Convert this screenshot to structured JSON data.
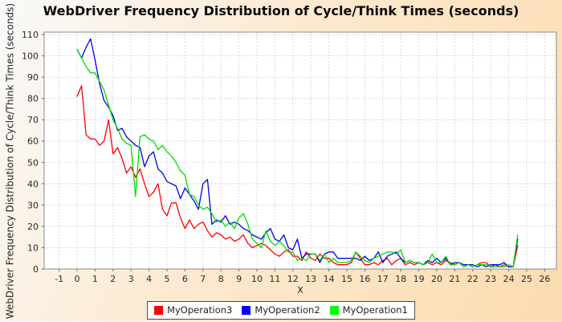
{
  "title": "WebDriver Frequency Distribution of Cycle/Think Times (seconds)",
  "background": {
    "top_left": "#fafafa",
    "mid": "#fce9cf",
    "bottom_right": "#fbdcb0"
  },
  "chart_data": {
    "type": "line",
    "title": "WebDriver Frequency Distribution of Cycle/Think Times (seconds)",
    "xlabel": "X",
    "ylabel": "WebDriver Frequency Distribution of Cycle/Think Times (seconds)",
    "xlim": [
      -1.8,
      26.6
    ],
    "ylim": [
      0,
      111
    ],
    "grid": true,
    "legend_position": "bottom",
    "x_ticks": [
      -1,
      0,
      1,
      2,
      3,
      4,
      5,
      6,
      7,
      8,
      9,
      10,
      11,
      12,
      13,
      14,
      15,
      16,
      17,
      18,
      19,
      20,
      21,
      22,
      23,
      24,
      25,
      26
    ],
    "y_ticks": [
      0,
      10,
      20,
      30,
      40,
      50,
      60,
      70,
      80,
      90,
      100,
      110
    ],
    "x_start": 0,
    "x_step": 0.25,
    "series": [
      {
        "name": "MyOperation3",
        "color": "#ff0000",
        "legend_color": "#ff0000",
        "values": [
          81,
          86,
          63,
          61,
          61,
          58,
          60,
          70,
          54,
          57,
          52,
          45,
          48,
          43,
          47,
          40,
          34,
          36,
          40,
          28,
          25,
          31,
          31,
          24,
          19,
          23,
          19,
          21,
          22,
          18,
          15,
          17,
          16,
          14,
          15,
          13,
          14,
          16,
          12,
          10,
          11,
          12,
          11,
          9,
          7,
          6,
          8,
          9,
          6,
          6,
          4,
          8,
          5,
          4,
          7,
          5,
          5,
          3,
          2,
          2,
          2,
          3,
          8,
          5,
          2,
          2,
          3,
          2,
          4,
          5,
          2,
          4,
          5,
          2,
          3,
          2,
          3,
          2,
          3,
          2,
          3,
          2,
          4,
          3,
          2,
          3,
          1,
          2,
          1,
          2,
          3,
          3,
          1,
          2,
          1,
          2,
          1,
          1,
          11
        ]
      },
      {
        "name": "MyOperation2",
        "color": "#0000ee",
        "legend_color": "#0000ff",
        "values": [
          103,
          99,
          104,
          108,
          98,
          87,
          79,
          76,
          72,
          65,
          66,
          62,
          60,
          58,
          57,
          48,
          53,
          55,
          47,
          45,
          41,
          40,
          39,
          33,
          38,
          35,
          32,
          28,
          40,
          42,
          21,
          23,
          22,
          25,
          21,
          22,
          21,
          19,
          18,
          16,
          15,
          14,
          17,
          19,
          14,
          13,
          16,
          10,
          9,
          14,
          5,
          7,
          7,
          7,
          3,
          7,
          8,
          8,
          5,
          5,
          5,
          5,
          5,
          4,
          6,
          4,
          5,
          8,
          3,
          6,
          7,
          8,
          5,
          3,
          4,
          3,
          3,
          2,
          4,
          3,
          5,
          3,
          5,
          2,
          3,
          3,
          2,
          2,
          2,
          1,
          2,
          1,
          2,
          2,
          2,
          3,
          1,
          1,
          14
        ]
      },
      {
        "name": "MyOperation1",
        "color": "#00dd00",
        "legend_color": "#00ff00",
        "values": [
          103,
          99,
          95,
          92,
          92,
          88,
          84,
          77,
          70,
          66,
          61,
          59,
          58,
          34,
          62,
          63,
          61,
          60,
          56,
          58,
          55,
          53,
          50,
          46,
          44,
          35,
          34,
          30,
          28,
          29,
          26,
          22,
          23,
          20,
          22,
          19,
          24,
          26,
          21,
          14,
          12,
          10,
          18,
          13,
          11,
          13,
          11,
          8,
          8,
          4,
          5,
          4,
          7,
          7,
          4,
          7,
          3,
          5,
          3,
          3,
          3,
          4,
          8,
          6,
          4,
          3,
          5,
          6,
          7,
          8,
          8,
          7,
          9,
          3,
          4,
          3,
          3,
          2,
          3,
          7,
          3,
          3,
          6,
          2,
          2,
          3,
          1,
          2,
          1,
          2,
          2,
          2,
          1,
          1,
          1,
          1,
          2,
          1,
          16
        ]
      }
    ]
  }
}
